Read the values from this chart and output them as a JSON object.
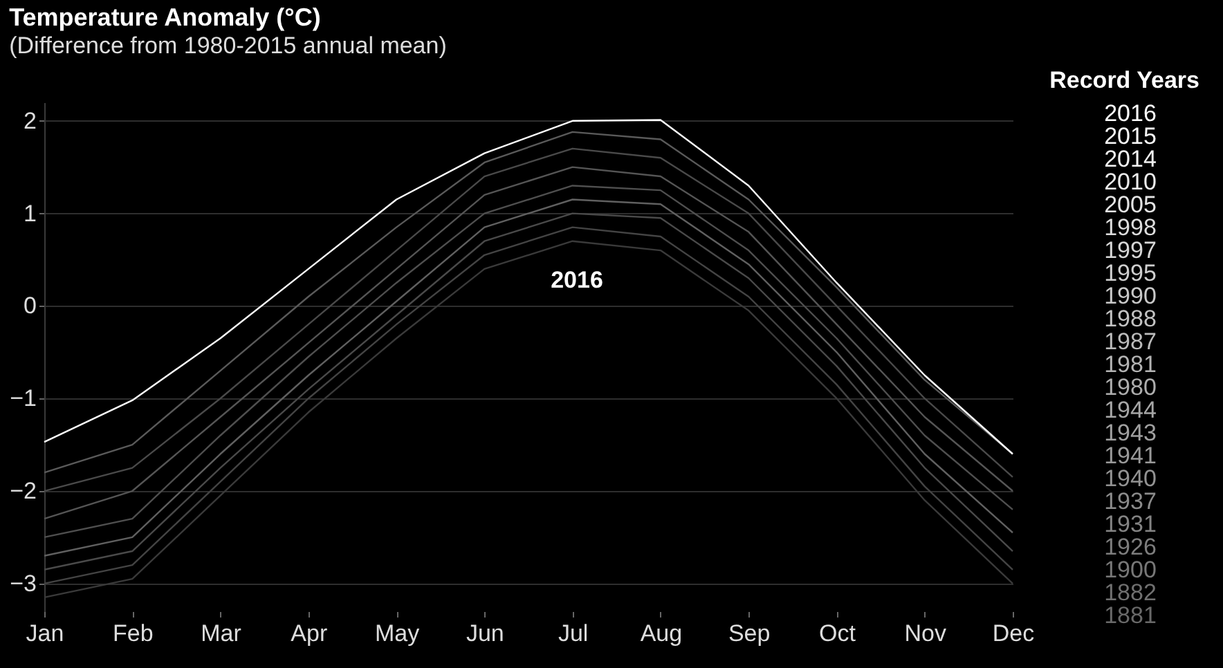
{
  "chart_data": {
    "type": "line",
    "title": "Temperature Anomaly (°C)",
    "subtitle": "(Difference from 1980-2015 annual mean)",
    "categories": [
      "Jan",
      "Feb",
      "Mar",
      "Apr",
      "May",
      "Jun",
      "Jul",
      "Aug",
      "Sep",
      "Oct",
      "Nov",
      "Dec"
    ],
    "series": [
      {
        "color": "#5a5a5a",
        "values": [
          -1.8,
          -1.5,
          -0.7,
          0.1,
          0.85,
          1.55,
          1.88,
          1.8,
          1.15,
          0.2,
          -0.8,
          -1.6
        ]
      },
      {
        "color": "#4a4a4a",
        "values": [
          -2.0,
          -1.75,
          -1.0,
          -0.2,
          0.6,
          1.4,
          1.7,
          1.6,
          1.0,
          0.0,
          -1.0,
          -1.85
        ]
      },
      {
        "color": "#555555",
        "values": [
          -2.3,
          -2.0,
          -1.2,
          -0.4,
          0.4,
          1.2,
          1.5,
          1.4,
          0.8,
          -0.2,
          -1.2,
          -2.0
        ]
      },
      {
        "color": "#4f4f4f",
        "values": [
          -2.5,
          -2.3,
          -1.4,
          -0.55,
          0.25,
          1.0,
          1.3,
          1.25,
          0.6,
          -0.35,
          -1.4,
          -2.2
        ]
      },
      {
        "color": "#606060",
        "values": [
          -2.7,
          -2.5,
          -1.6,
          -0.75,
          0.05,
          0.85,
          1.15,
          1.1,
          0.45,
          -0.5,
          -1.6,
          -2.45
        ]
      },
      {
        "color": "#4a4a4a",
        "values": [
          -2.85,
          -2.65,
          -1.75,
          -0.9,
          -0.1,
          0.7,
          1.0,
          0.95,
          0.3,
          -0.65,
          -1.75,
          -2.65
        ]
      },
      {
        "color": "#444444",
        "values": [
          -3.0,
          -2.8,
          -1.9,
          -1.0,
          -0.2,
          0.55,
          0.85,
          0.75,
          0.1,
          -0.85,
          -1.95,
          -2.85
        ]
      },
      {
        "color": "#3a3a3a",
        "values": [
          -3.15,
          -2.95,
          -2.05,
          -1.15,
          -0.35,
          0.4,
          0.7,
          0.6,
          -0.05,
          -1.0,
          -2.1,
          -3.0
        ]
      },
      {
        "color": "#ffffff",
        "values": [
          -1.47,
          -1.02,
          -0.35,
          0.4,
          1.15,
          1.65,
          2.0,
          2.01,
          1.3,
          0.25,
          -0.75,
          -1.6
        ]
      }
    ],
    "ylim": [
      -3.3,
      2.2
    ],
    "yticks": [
      {
        "value": -3,
        "label": "−3"
      },
      {
        "value": -2,
        "label": "−2"
      },
      {
        "value": -1,
        "label": "−1"
      },
      0,
      1,
      2
    ],
    "grid": "y",
    "legend": false,
    "marker": "none",
    "line_style": "solid",
    "annotations": [
      "2016",
      "Record Years",
      "2016",
      "2015",
      "2014",
      "2010",
      "2005",
      "1998",
      "1997",
      "1995",
      "1990",
      "1988",
      "1987",
      "1981",
      "1980",
      "1944",
      "1943",
      "1941",
      "1940",
      "1937",
      "1931",
      "1926",
      "1900",
      "1882",
      "1881"
    ]
  }
}
